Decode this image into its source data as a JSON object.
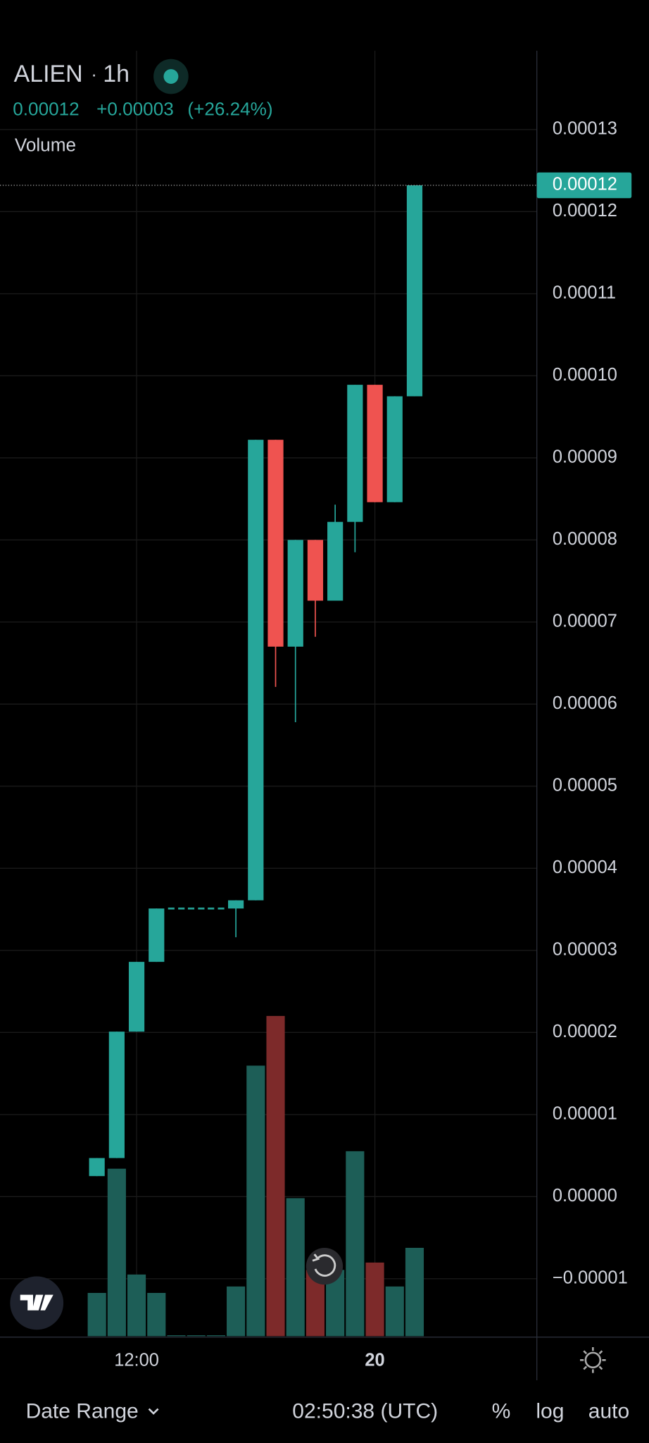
{
  "header": {
    "symbol": "ALIEN",
    "interval": "1h",
    "price": "0.00012",
    "change": "+0.00003",
    "change_pct": "(+26.24%)",
    "indicator": "Volume"
  },
  "chart_data": {
    "type": "candlestick",
    "categories": [
      null,
      null,
      "12:00",
      null,
      null,
      null,
      null,
      null,
      null,
      null,
      null,
      null,
      null,
      null,
      "20",
      null,
      null
    ],
    "open": [
      2.5e-06,
      4.7e-06,
      2.01e-05,
      2.86e-05,
      3.51e-05,
      3.51e-05,
      3.51e-05,
      3.51e-05,
      3.61e-05,
      9.22e-05,
      6.7e-05,
      8e-05,
      7.26e-05,
      8.22e-05,
      9.89e-05,
      8.46e-05,
      9.75e-05
    ],
    "high": [
      4.7e-06,
      2.01e-05,
      2.86e-05,
      3.51e-05,
      3.51e-05,
      3.51e-05,
      3.51e-05,
      3.61e-05,
      9.22e-05,
      9.22e-05,
      8e-05,
      8e-05,
      8.43e-05,
      9.89e-05,
      9.89e-05,
      9.75e-05,
      0.0001232
    ],
    "low": [
      2.5e-06,
      4.7e-06,
      2.01e-05,
      2.86e-05,
      3.51e-05,
      3.51e-05,
      3.51e-05,
      3.16e-05,
      3.61e-05,
      6.21e-05,
      5.78e-05,
      6.82e-05,
      7.26e-05,
      7.85e-05,
      8.46e-05,
      8.46e-05,
      9.75e-05
    ],
    "close": [
      4.7e-06,
      2.01e-05,
      2.86e-05,
      3.51e-05,
      3.51e-05,
      3.51e-05,
      3.51e-05,
      3.61e-05,
      9.22e-05,
      6.7e-05,
      8e-05,
      7.26e-05,
      8.22e-05,
      9.89e-05,
      8.46e-05,
      9.75e-05,
      0.0001232
    ],
    "volume": [
      47,
      182,
      67,
      47,
      1,
      1,
      1,
      54,
      294,
      348,
      150,
      72,
      72,
      201,
      80,
      54,
      96
    ],
    "volume_ylim": [
      0,
      1397
    ],
    "up_color": "#26a69a",
    "down_color": "#ef5350",
    "volume_up_color": "#1d5e57",
    "volume_down_color": "#7d2a2a",
    "ylim": [
      -1.7e-05,
      0.0001396
    ],
    "yticks": [
      0.00013,
      0.00012,
      0.00011,
      {
        "value": 0.0001,
        "label": "0.00010"
      },
      9e-05,
      8e-05,
      7e-05,
      6e-05,
      5e-05,
      4e-05,
      3e-05,
      2e-05,
      1e-05,
      {
        "value": 0,
        "label": "0.00000"
      },
      {
        "value": -1e-05,
        "label": "−0.00001"
      }
    ],
    "last_price_label": "0.00012",
    "grid": true
  },
  "footer": {
    "date_range": "Date Range",
    "time": "02:50:38 (UTC)",
    "percent": "%",
    "log": "log",
    "auto": "auto"
  }
}
